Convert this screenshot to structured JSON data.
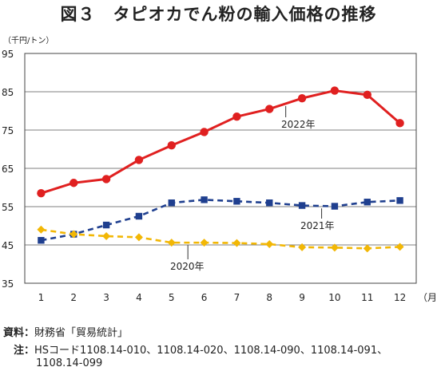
{
  "title": "図３　タピオカでん粉の輸入価格の推移",
  "unit_label": "（千円/トン）",
  "source_key": "資料：",
  "source_text": "財務省「貿易統計」",
  "note_key": "注：",
  "note_text_line1": "HSコード1108.14-010、1108.14-020、1108.14-090、1108.14-091、",
  "note_text_line2": "1108.14-099",
  "chart_data": {
    "type": "line",
    "x": [
      1,
      2,
      3,
      4,
      5,
      6,
      7,
      8,
      9,
      10,
      11,
      12
    ],
    "x_tick_labels": [
      "1",
      "2",
      "3",
      "4",
      "5",
      "6",
      "7",
      "8",
      "9",
      "10",
      "11",
      "12"
    ],
    "x_unit": "（月）",
    "ylim": [
      35,
      95
    ],
    "y_ticks": [
      35,
      45,
      55,
      65,
      75,
      85,
      95
    ],
    "grid": true,
    "series": [
      {
        "name": "2022年",
        "color": "#e02020",
        "marker": "circle",
        "line": "solid",
        "values": [
          58.5,
          61.2,
          62.2,
          67.2,
          71.0,
          74.5,
          78.5,
          80.5,
          83.3,
          85.3,
          84.2,
          76.8
        ]
      },
      {
        "name": "2021年",
        "color": "#1f3f8f",
        "marker": "square",
        "line": "dashed",
        "values": [
          46.2,
          47.8,
          50.2,
          52.5,
          56.0,
          56.8,
          56.4,
          56.0,
          55.3,
          55.1,
          56.2,
          56.6
        ]
      },
      {
        "name": "2020年",
        "color": "#f2b705",
        "marker": "diamond",
        "line": "dashed",
        "values": [
          49.0,
          47.8,
          47.3,
          47.0,
          45.6,
          45.6,
          45.5,
          45.2,
          44.4,
          44.3,
          44.1,
          44.5
        ]
      }
    ]
  }
}
